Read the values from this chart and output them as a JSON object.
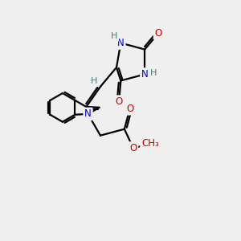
{
  "background_color": "#efefef",
  "bond_color": "#000000",
  "bond_width": 1.6,
  "dbo": 0.08,
  "atom_colors": {
    "C": "#000000",
    "N": "#0000cc",
    "O": "#cc0000",
    "H": "#3a8080"
  },
  "font_size": 8.5,
  "figsize": [
    3.0,
    3.0
  ],
  "dpi": 100
}
